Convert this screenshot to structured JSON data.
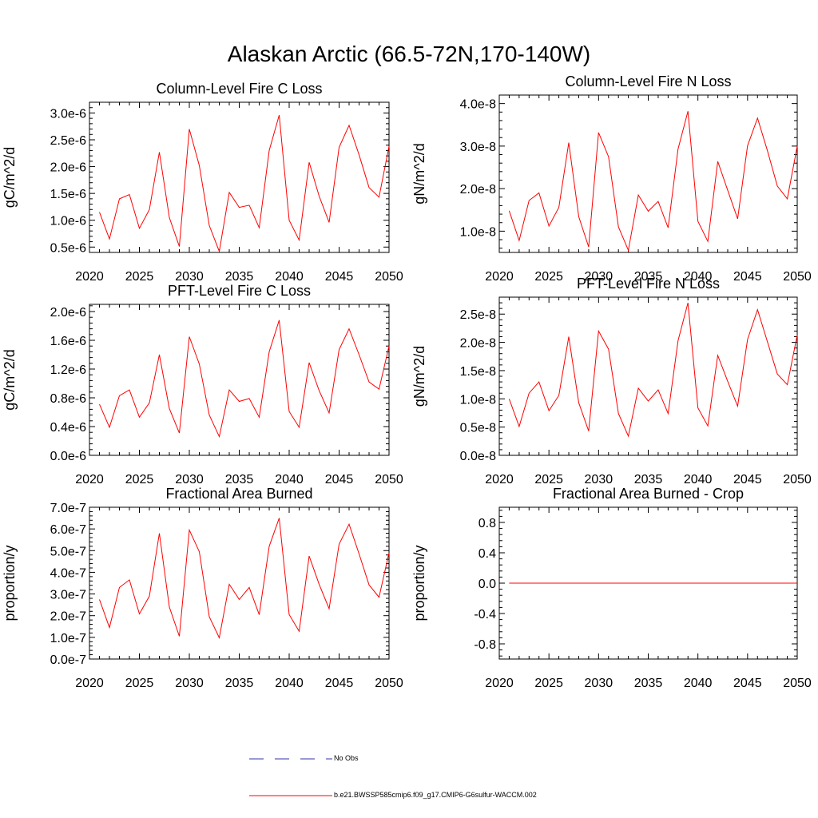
{
  "title": "Alaskan Arctic (66.5-72N,170-140W)",
  "colors": {
    "series": "#ff0000",
    "obs": "#3333aa",
    "axis": "#000000"
  },
  "legend": {
    "obs_label": "No Obs",
    "model_label": "b.e21.BWSSP585cmip6.f09_g17.CMIP6-G6sulfur-WACCM.002"
  },
  "chart_data": [
    {
      "type": "line",
      "title": "Column-Level Fire C Loss",
      "ylabel": "gC/m^2/d",
      "xlim": [
        2020,
        2050
      ],
      "ylim": [
        4e-07,
        3.2e-06
      ],
      "xticks": [
        2020,
        2025,
        2030,
        2035,
        2040,
        2045,
        2050
      ],
      "xticklabels": [
        "2020",
        "2025",
        "2030",
        "2035",
        "2040",
        "2045",
        "2050"
      ],
      "yticks": [
        5e-07,
        1e-06,
        1.5e-06,
        2e-06,
        2.5e-06,
        3e-06
      ],
      "yticklabels": [
        "0.5e-6",
        "1.0e-6",
        "1.5e-6",
        "2.0e-6",
        "2.5e-6",
        "3.0e-6"
      ],
      "x": [
        2021,
        2022,
        2023,
        2024,
        2025,
        2026,
        2027,
        2028,
        2029,
        2030,
        2031,
        2032,
        2033,
        2034,
        2035,
        2036,
        2037,
        2038,
        2039,
        2040,
        2041,
        2042,
        2043,
        2044,
        2045,
        2046,
        2047,
        2048,
        2049,
        2050
      ],
      "series": [
        {
          "values": [
            1.15e-06,
            6.5e-07,
            1.4e-06,
            1.48e-06,
            8.5e-07,
            1.2e-06,
            2.27e-06,
            1.05e-06,
            5.1e-07,
            2.7e-06,
            2.02e-06,
            9e-07,
            4.2e-07,
            1.52e-06,
            1.24e-06,
            1.28e-06,
            8.6e-07,
            2.3e-06,
            2.96e-06,
            1e-06,
            6.3e-07,
            2.08e-06,
            1.45e-06,
            9.6e-07,
            2.36e-06,
            2.77e-06,
            2.22e-06,
            1.61e-06,
            1.43e-06,
            2.38e-06
          ]
        }
      ]
    },
    {
      "type": "line",
      "title": "Column-Level Fire N Loss",
      "ylabel": "gN/m^2/d",
      "xlim": [
        2020,
        2050
      ],
      "ylim": [
        5e-09,
        4.2e-08
      ],
      "xticks": [
        2020,
        2025,
        2030,
        2035,
        2040,
        2045,
        2050
      ],
      "xticklabels": [
        "2020",
        "2025",
        "2030",
        "2035",
        "2040",
        "2045",
        "2050"
      ],
      "yticks": [
        1e-08,
        2e-08,
        3e-08,
        4e-08
      ],
      "yticklabels": [
        "1.0e-8",
        "2.0e-8",
        "3.0e-8",
        "4.0e-8"
      ],
      "x": [
        2021,
        2022,
        2023,
        2024,
        2025,
        2026,
        2027,
        2028,
        2029,
        2030,
        2031,
        2032,
        2033,
        2034,
        2035,
        2036,
        2037,
        2038,
        2039,
        2040,
        2041,
        2042,
        2043,
        2044,
        2045,
        2046,
        2047,
        2048,
        2049,
        2050
      ],
      "series": [
        {
          "values": [
            1.48e-08,
            7.8e-09,
            1.72e-08,
            1.9e-08,
            1.12e-08,
            1.56e-08,
            3.08e-08,
            1.34e-08,
            6.3e-09,
            3.32e-08,
            2.75e-08,
            1.1e-08,
            5.5e-09,
            1.85e-08,
            1.47e-08,
            1.7e-08,
            1.08e-08,
            2.93e-08,
            3.82e-08,
            1.23e-08,
            7.6e-09,
            2.64e-08,
            1.96e-08,
            1.29e-08,
            3.01e-08,
            3.66e-08,
            2.89e-08,
            2.06e-08,
            1.76e-08,
            3e-08
          ]
        }
      ]
    },
    {
      "type": "line",
      "title": "PFT-Level Fire C Loss",
      "ylabel": "gC/m^2/d",
      "xlim": [
        2020,
        2050
      ],
      "ylim": [
        0.0,
        2.1e-06
      ],
      "xticks": [
        2020,
        2025,
        2030,
        2035,
        2040,
        2045,
        2050
      ],
      "xticklabels": [
        "2020",
        "2025",
        "2030",
        "2035",
        "2040",
        "2045",
        "2050"
      ],
      "yticks": [
        0.0,
        4e-07,
        8e-07,
        1.2e-06,
        1.6e-06,
        2e-06
      ],
      "yticklabels": [
        "0.0e-6",
        "0.4e-6",
        "0.8e-6",
        "1.2e-6",
        "1.6e-6",
        "2.0e-6"
      ],
      "x": [
        2021,
        2022,
        2023,
        2024,
        2025,
        2026,
        2027,
        2028,
        2029,
        2030,
        2031,
        2032,
        2033,
        2034,
        2035,
        2036,
        2037,
        2038,
        2039,
        2040,
        2041,
        2042,
        2043,
        2044,
        2045,
        2046,
        2047,
        2048,
        2049,
        2050
      ],
      "series": [
        {
          "values": [
            7.1e-07,
            3.9e-07,
            8.3e-07,
            9.1e-07,
            5.3e-07,
            7.3e-07,
            1.4e-06,
            6.5e-07,
            3.1e-07,
            1.65e-06,
            1.27e-06,
            5.6e-07,
            2.6e-07,
            9.1e-07,
            7.5e-07,
            7.9e-07,
            5.3e-07,
            1.44e-06,
            1.88e-06,
            6.1e-07,
            3.9e-07,
            1.29e-06,
            9e-07,
            5.9e-07,
            1.47e-06,
            1.76e-06,
            1.4e-06,
            1.02e-06,
            9.2e-07,
            1.52e-06
          ]
        }
      ]
    },
    {
      "type": "line",
      "title": "PFT-Level Fire N Loss",
      "ylabel": "gN/m^2/d",
      "xlim": [
        2020,
        2050
      ],
      "ylim": [
        0.0,
        2.8e-08
      ],
      "xticks": [
        2020,
        2025,
        2030,
        2035,
        2040,
        2045,
        2050
      ],
      "xticklabels": [
        "2020",
        "2025",
        "2030",
        "2035",
        "2040",
        "2045",
        "2050"
      ],
      "yticks": [
        0.0,
        5e-09,
        1e-08,
        1.5e-08,
        2e-08,
        2.5e-08
      ],
      "yticklabels": [
        "0.0e-8",
        "0.5e-8",
        "1.0e-8",
        "1.5e-8",
        "2.0e-8",
        "2.5e-8"
      ],
      "x": [
        2021,
        2022,
        2023,
        2024,
        2025,
        2026,
        2027,
        2028,
        2029,
        2030,
        2031,
        2032,
        2033,
        2034,
        2035,
        2036,
        2037,
        2038,
        2039,
        2040,
        2041,
        2042,
        2043,
        2044,
        2045,
        2046,
        2047,
        2048,
        2049,
        2050
      ],
      "series": [
        {
          "values": [
            1e-08,
            5.1e-09,
            1.1e-08,
            1.3e-08,
            7.9e-09,
            1.06e-08,
            2.1e-08,
            9.3e-09,
            4.3e-09,
            2.2e-08,
            1.88e-08,
            7.4e-09,
            3.4e-09,
            1.19e-08,
            9.6e-09,
            1.16e-08,
            7.4e-09,
            2.03e-08,
            2.7e-08,
            8.4e-09,
            5.2e-09,
            1.77e-08,
            1.31e-08,
            8.7e-09,
            2.05e-08,
            2.58e-08,
            2.01e-08,
            1.44e-08,
            1.25e-08,
            2.13e-08
          ]
        }
      ]
    },
    {
      "type": "line",
      "title": "Fractional Area Burned",
      "ylabel": "proportion/y",
      "xlim": [
        2020,
        2050
      ],
      "ylim": [
        0.0,
        7e-07
      ],
      "xticks": [
        2020,
        2025,
        2030,
        2035,
        2040,
        2045,
        2050
      ],
      "xticklabels": [
        "2020",
        "2025",
        "2030",
        "2035",
        "2040",
        "2045",
        "2050"
      ],
      "yticks": [
        0.0,
        1e-07,
        2e-07,
        3e-07,
        4e-07,
        5e-07,
        6e-07,
        7e-07
      ],
      "yticklabels": [
        "0.0e-7",
        "1.0e-7",
        "2.0e-7",
        "3.0e-7",
        "4.0e-7",
        "5.0e-7",
        "6.0e-7",
        "7.0e-7"
      ],
      "x": [
        2021,
        2022,
        2023,
        2024,
        2025,
        2026,
        2027,
        2028,
        2029,
        2030,
        2031,
        2032,
        2033,
        2034,
        2035,
        2036,
        2037,
        2038,
        2039,
        2040,
        2041,
        2042,
        2043,
        2044,
        2045,
        2046,
        2047,
        2048,
        2049,
        2050
      ],
      "series": [
        {
          "values": [
            2.75e-07,
            1.45e-07,
            3.3e-07,
            3.65e-07,
            2.08e-07,
            2.9e-07,
            5.8e-07,
            2.4e-07,
            1.05e-07,
            5.95e-07,
            4.95e-07,
            1.95e-07,
            9.8e-08,
            3.45e-07,
            2.75e-07,
            3.3e-07,
            2.05e-07,
            5.2e-07,
            6.5e-07,
            2.05e-07,
            1.28e-07,
            4.75e-07,
            3.45e-07,
            2.32e-07,
            5.3e-07,
            6.22e-07,
            4.85e-07,
            3.42e-07,
            2.85e-07,
            4.9e-07
          ]
        }
      ]
    },
    {
      "type": "line",
      "title": "Fractional Area Burned - Crop",
      "ylabel": "proportion/y",
      "xlim": [
        2020,
        2050
      ],
      "ylim": [
        -1.0,
        1.0
      ],
      "xticks": [
        2020,
        2025,
        2030,
        2035,
        2040,
        2045,
        2050
      ],
      "xticklabels": [
        "2020",
        "2025",
        "2030",
        "2035",
        "2040",
        "2045",
        "2050"
      ],
      "yticks": [
        -0.8,
        -0.4,
        0.0,
        0.4,
        0.8
      ],
      "yticklabels": [
        "-0.8",
        "-0.4",
        "0.0",
        "0.4",
        "0.8"
      ],
      "x": [
        2021,
        2022,
        2023,
        2024,
        2025,
        2026,
        2027,
        2028,
        2029,
        2030,
        2031,
        2032,
        2033,
        2034,
        2035,
        2036,
        2037,
        2038,
        2039,
        2040,
        2041,
        2042,
        2043,
        2044,
        2045,
        2046,
        2047,
        2048,
        2049,
        2050
      ],
      "series": [
        {
          "values": [
            0,
            0,
            0,
            0,
            0,
            0,
            0,
            0,
            0,
            0,
            0,
            0,
            0,
            0,
            0,
            0,
            0,
            0,
            0,
            0,
            0,
            0,
            0,
            0,
            0,
            0,
            0,
            0,
            0,
            0
          ]
        }
      ]
    }
  ]
}
